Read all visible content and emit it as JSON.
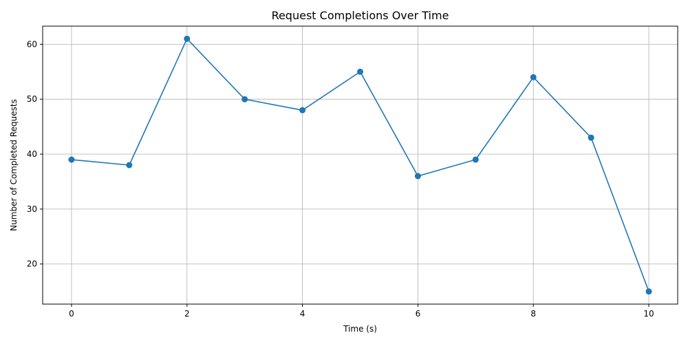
{
  "chart_data": {
    "type": "line",
    "title": "Request Completions Over Time",
    "xlabel": "Time (s)",
    "ylabel": "Number of Completed Requests",
    "x": [
      0,
      1,
      2,
      3,
      4,
      5,
      6,
      7,
      8,
      9,
      10
    ],
    "series": [
      {
        "values": [
          39,
          38,
          61,
          50,
          48,
          55,
          36,
          39,
          54,
          43,
          15
        ],
        "color": "#1f77b4",
        "marker": "circle"
      }
    ],
    "xlim": [
      -0.5,
      10.5
    ],
    "ylim": [
      12.7,
      63.3
    ],
    "xticks": [
      0,
      2,
      4,
      6,
      8,
      10
    ],
    "yticks": [
      20,
      30,
      40,
      50,
      60
    ],
    "grid": true
  }
}
